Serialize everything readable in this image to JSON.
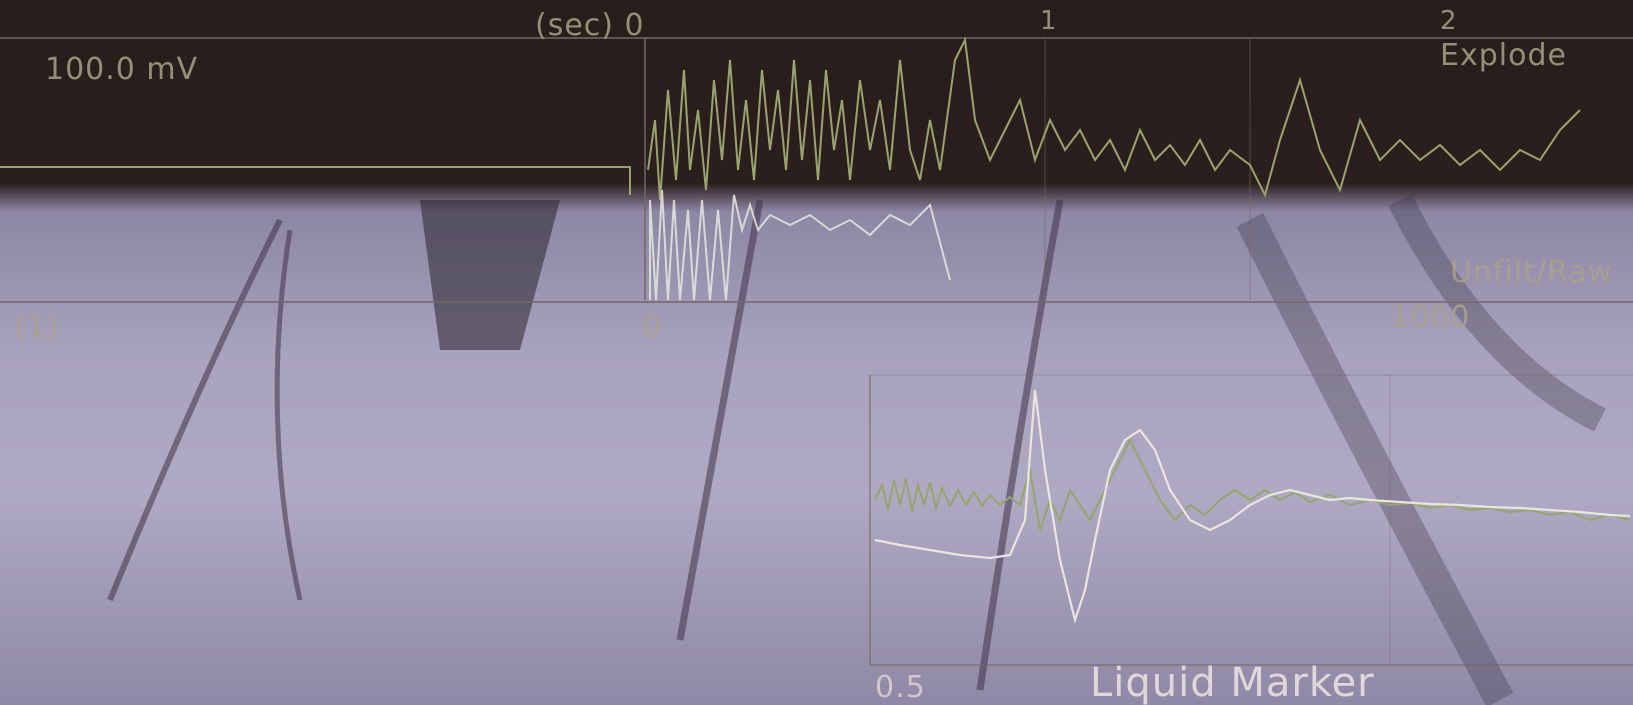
{
  "top_panel": {
    "time_unit_label": "(sec) 0",
    "tick_1": "1",
    "tick_2": "2",
    "amplitude_label": "100.0 mV",
    "mode_label": "Explode",
    "left_axis_label": "(1)",
    "axis_start": "0",
    "scale_label": "Unfilt/Raw",
    "axis_end": "1000"
  },
  "bottom_panel": {
    "axis_start": "0.5",
    "title": "Liquid Marker"
  },
  "colors": {
    "trace_green": "#9aa36e",
    "trace_white": "#e8e6df",
    "grid": "#6f6a66"
  }
}
